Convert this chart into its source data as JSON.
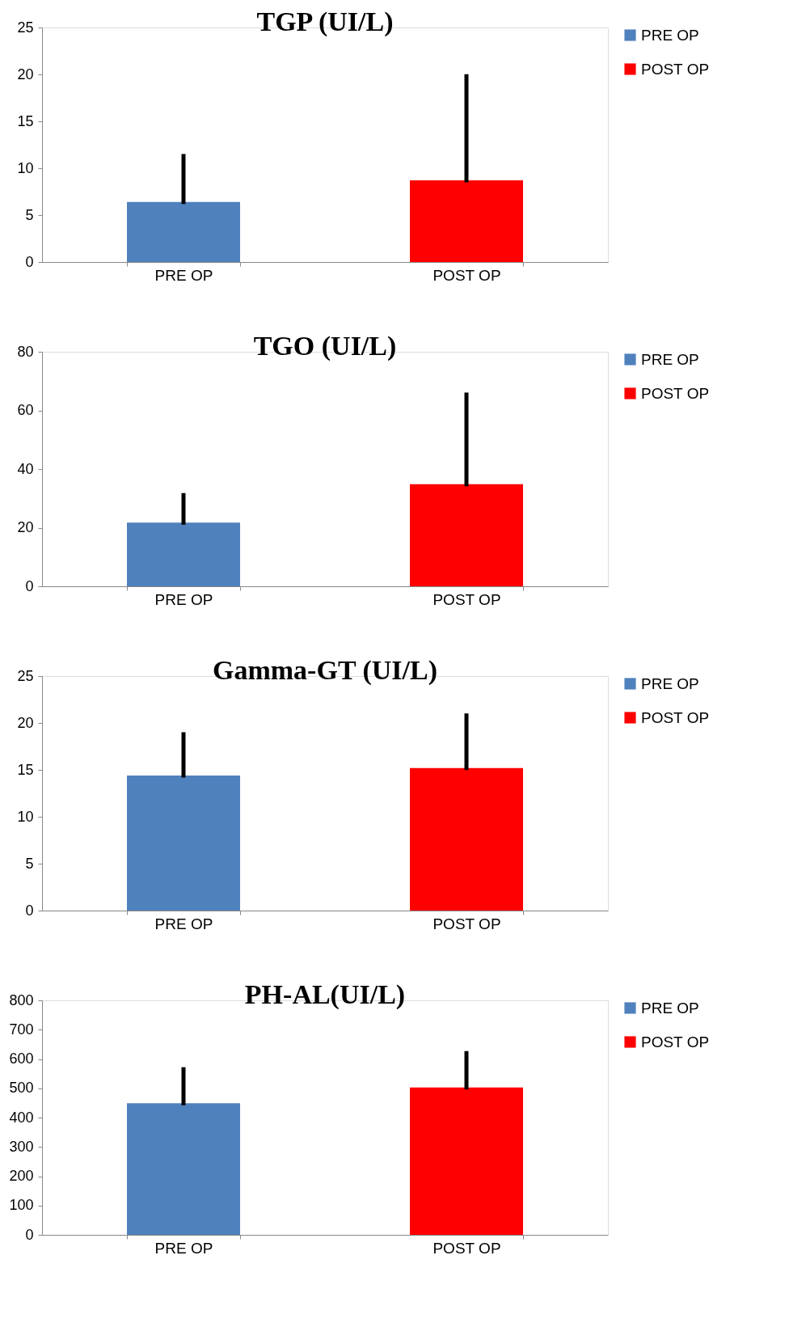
{
  "chart_data": [
    {
      "type": "bar",
      "title": "TGP (UI/L)",
      "categories": [
        "PRE OP",
        "POST OP"
      ],
      "ylim": [
        0,
        25
      ],
      "yticks": [
        0,
        5,
        10,
        15,
        20,
        25
      ],
      "grid": false,
      "legend": "right",
      "series": [
        {
          "name": "PRE OP",
          "color": "#4f81bd",
          "values": [
            6.4,
            null
          ],
          "errors": [
            [
              6.4,
              11.3
            ],
            null
          ]
        },
        {
          "name": "POST OP",
          "color": "#ff0000",
          "values": [
            null,
            8.7
          ],
          "errors": [
            null,
            [
              8.7,
              19.8
            ]
          ]
        }
      ]
    },
    {
      "type": "bar",
      "title": "TGO (UI/L)",
      "categories": [
        "PRE OP",
        "POST OP"
      ],
      "ylim": [
        0,
        80
      ],
      "yticks": [
        0,
        20,
        40,
        60,
        80
      ],
      "grid": false,
      "legend": "right",
      "series": [
        {
          "name": "PRE OP",
          "color": "#4f81bd",
          "values": [
            21.7,
            null
          ],
          "errors": [
            [
              21.7,
              31.1
            ],
            null
          ]
        },
        {
          "name": "POST OP",
          "color": "#ff0000",
          "values": [
            null,
            34.8
          ],
          "errors": [
            null,
            [
              34.8,
              65.4
            ]
          ]
        }
      ]
    },
    {
      "type": "bar",
      "title": "Gamma-GT (UI/L)",
      "categories": [
        "PRE OP",
        "POST   OP"
      ],
      "ylim": [
        0,
        25
      ],
      "yticks": [
        0,
        5,
        10,
        15,
        20,
        25
      ],
      "grid": false,
      "legend": "right",
      "series": [
        {
          "name": "PRE OP",
          "color": "#4f81bd",
          "values": [
            14.4,
            null
          ],
          "errors": [
            [
              14.4,
              18.8
            ],
            null
          ]
        },
        {
          "name": "POST   OP",
          "color": "#ff0000",
          "values": [
            null,
            15.2
          ],
          "errors": [
            null,
            [
              15.2,
              20.8
            ]
          ]
        }
      ]
    },
    {
      "type": "bar",
      "title": "PH-AL(UI/L)",
      "categories": [
        "PRE OP",
        "POST OP"
      ],
      "ylim": [
        0,
        800
      ],
      "yticks": [
        0,
        100,
        200,
        300,
        400,
        500,
        600,
        700,
        800
      ],
      "grid": false,
      "legend": "right",
      "series": [
        {
          "name": "PRE OP",
          "color": "#4f81bd",
          "values": [
            449,
            null
          ],
          "errors": [
            [
              449,
              565
            ],
            null
          ]
        },
        {
          "name": "POST OP",
          "color": "#ff0000",
          "values": [
            null,
            503
          ],
          "errors": [
            null,
            [
              503,
              620
            ]
          ]
        }
      ]
    }
  ]
}
